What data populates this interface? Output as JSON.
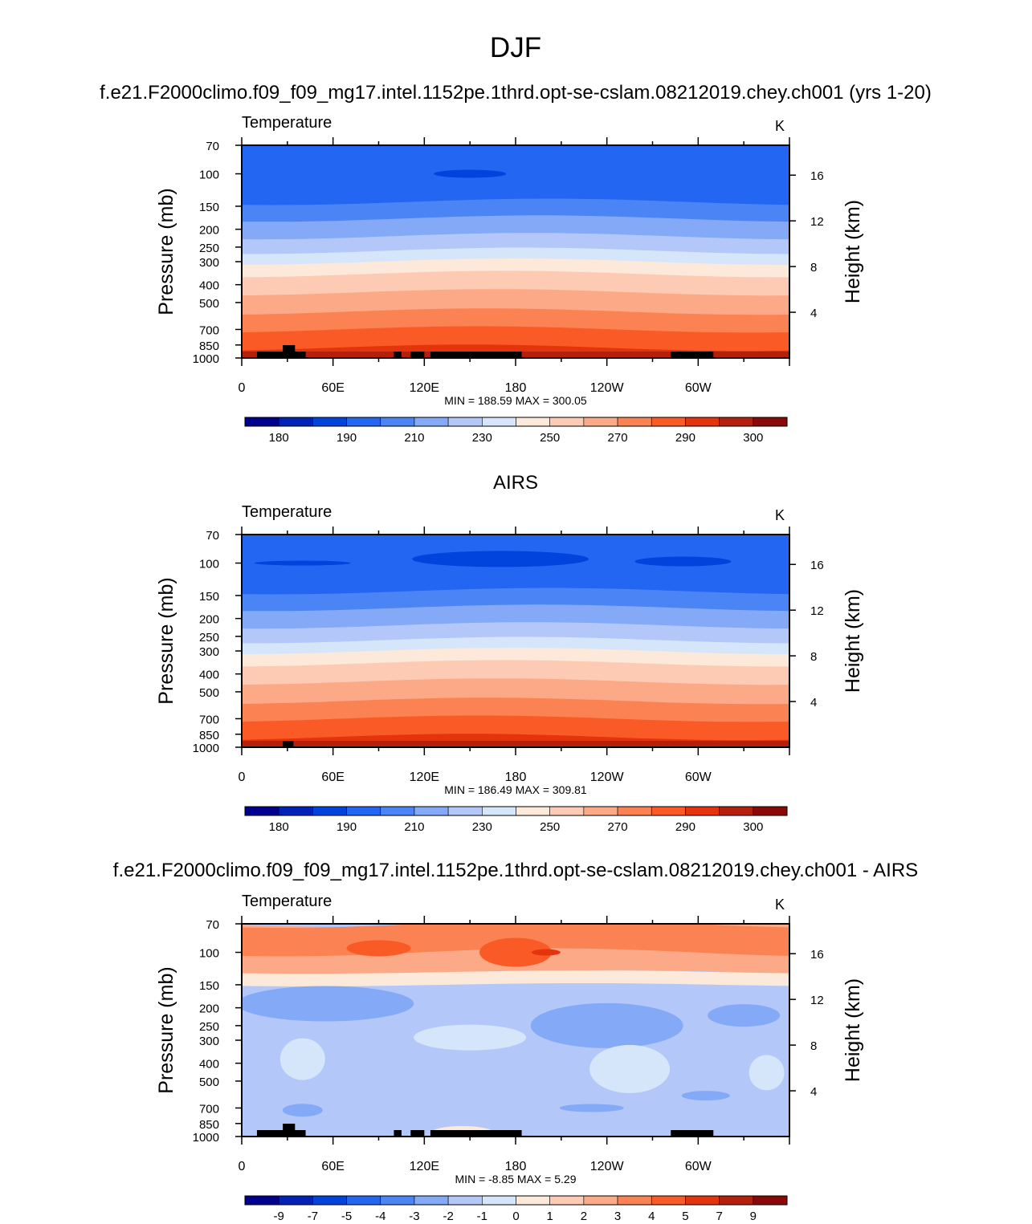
{
  "page": {
    "title": "DJF"
  },
  "chart_data": [
    {
      "type": "heatmap",
      "title": "f.e21.F2000climo.f09_f09_mg17.intel.1152pe.1thrd.opt-se-cslam.08212019.chey.ch001 (yrs 1-20)",
      "left_string": "Temperature",
      "right_string": "K",
      "xlabel": "",
      "ylabel": "Pressure (mb)",
      "ylabel_right": "Height (km)",
      "x_ticks": [
        "0",
        "60E",
        "120E",
        "180",
        "120W",
        "60W"
      ],
      "y_ticks": [
        "70",
        "100",
        "150",
        "200",
        "250",
        "300",
        "400",
        "500",
        "700",
        "850",
        "1000"
      ],
      "y_right_ticks": [
        "16",
        "12",
        "8",
        "4"
      ],
      "ylim": [
        1000,
        70
      ],
      "xlim": [
        0,
        360
      ],
      "stats_label": "MIN = 188.59  MAX = 300.05",
      "colorbar_labels": [
        "180",
        "190",
        "210",
        "230",
        "250",
        "270",
        "290",
        "300"
      ],
      "colorbar_colors": [
        "#00008f",
        "#0022b6",
        "#0044dd",
        "#2266f2",
        "#4b84f5",
        "#83a9f7",
        "#b3c8f8",
        "#d6e6fa",
        "#fde9d9",
        "#fdcbb4",
        "#fca988",
        "#fb8253",
        "#fa5a25",
        "#e3340d",
        "#b5200d",
        "#8a0808"
      ]
    },
    {
      "type": "heatmap",
      "title": "AIRS",
      "left_string": "Temperature",
      "right_string": "K",
      "xlabel": "",
      "ylabel": "Pressure (mb)",
      "ylabel_right": "Height (km)",
      "x_ticks": [
        "0",
        "60E",
        "120E",
        "180",
        "120W",
        "60W"
      ],
      "y_ticks": [
        "70",
        "100",
        "150",
        "200",
        "250",
        "300",
        "400",
        "500",
        "700",
        "850",
        "1000"
      ],
      "y_right_ticks": [
        "16",
        "12",
        "8",
        "4"
      ],
      "ylim": [
        1000,
        70
      ],
      "xlim": [
        0,
        360
      ],
      "stats_label": "MIN = 186.49  MAX = 309.81",
      "colorbar_labels": [
        "180",
        "190",
        "210",
        "230",
        "250",
        "270",
        "290",
        "300"
      ],
      "colorbar_colors": [
        "#00008f",
        "#0022b6",
        "#0044dd",
        "#2266f2",
        "#4b84f5",
        "#83a9f7",
        "#b3c8f8",
        "#d6e6fa",
        "#fde9d9",
        "#fdcbb4",
        "#fca988",
        "#fb8253",
        "#fa5a25",
        "#e3340d",
        "#b5200d",
        "#8a0808"
      ]
    },
    {
      "type": "heatmap",
      "title": "f.e21.F2000climo.f09_f09_mg17.intel.1152pe.1thrd.opt-se-cslam.08212019.chey.ch001 - AIRS",
      "left_string": "Temperature",
      "right_string": "K",
      "xlabel": "",
      "ylabel": "Pressure (mb)",
      "ylabel_right": "Height (km)",
      "x_ticks": [
        "0",
        "60E",
        "120E",
        "180",
        "120W",
        "60W"
      ],
      "y_ticks": [
        "70",
        "100",
        "150",
        "200",
        "250",
        "300",
        "400",
        "500",
        "700",
        "850",
        "1000"
      ],
      "y_right_ticks": [
        "16",
        "12",
        "8",
        "4"
      ],
      "ylim": [
        1000,
        70
      ],
      "xlim": [
        0,
        360
      ],
      "stats_label": "MIN =  -8.85   MAX =    5.29",
      "colorbar_labels": [
        "-9",
        "-7",
        "-5",
        "-4",
        "-3",
        "-2",
        "-1",
        "0",
        "1",
        "2",
        "3",
        "4",
        "5",
        "7",
        "9"
      ],
      "colorbar_colors": [
        "#00008f",
        "#0022b6",
        "#0044dd",
        "#2266f2",
        "#4b84f5",
        "#83a9f7",
        "#b3c8f8",
        "#d6e6fa",
        "#fde9d9",
        "#fdcbb4",
        "#fca988",
        "#fb8253",
        "#fa5a25",
        "#e3340d",
        "#b5200d",
        "#8a0808"
      ]
    }
  ]
}
